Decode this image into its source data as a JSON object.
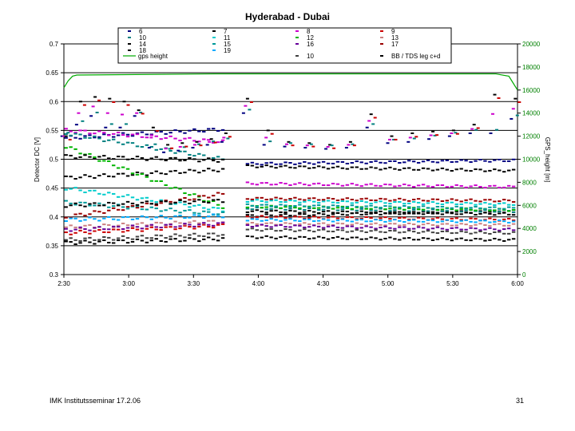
{
  "footer": {
    "left": "IMK Institutsseminar  17.2.06",
    "page": "31"
  },
  "colors": {
    "6": "#000080",
    "7": "#000000",
    "8": "#cc00cc",
    "9": "#cc0000",
    "10": "#008080",
    "11": "#00cccc",
    "12": "#00b400",
    "13": "#cc8080",
    "14": "#000000",
    "15": "#009999",
    "16": "#660099",
    "17": "#990000",
    "18": "#000000",
    "19": "#00aaff",
    "10b": "#404040",
    "bb": "#000000",
    "gps": "#00aa00"
  },
  "chart_data": {
    "type": "scatter",
    "title": "Hyderabad - Dubai",
    "xlabel": "",
    "ylabel": "Detector DC [V]",
    "y2label": "GPS_height [m]",
    "x_ticks": [
      "2:30",
      "3:00",
      "3:30",
      "4:00",
      "4:30",
      "5:00",
      "5:30",
      "6:00"
    ],
    "x_range": [
      "2:30",
      "6:00"
    ],
    "ylim": [
      0.3,
      0.7
    ],
    "y_ticks": [
      "0.3",
      "0.35",
      "0.4",
      "0.45",
      "0.5",
      "0.55",
      "0.6",
      "0.65",
      "0.7"
    ],
    "y2lim": [
      0,
      20000
    ],
    "y2_ticks": [
      "0",
      "2000",
      "4000",
      "6000",
      "8000",
      "10000",
      "12000",
      "14000",
      "16000",
      "18000",
      "20000"
    ],
    "grid": true,
    "legend_position": "top",
    "legend": [
      "6",
      "7",
      "8",
      "9",
      "10",
      "11",
      "12",
      "13",
      "14",
      "15",
      "16",
      "17",
      "18",
      "19",
      "10",
      "BB / TDS leg c+d",
      "gps height"
    ],
    "gap": [
      "3:45",
      "3:55"
    ],
    "series": [
      {
        "name": "6",
        "key": "6",
        "pre": [
          0.537,
          0.552
        ],
        "post": [
          0.492,
          0.498
        ]
      },
      {
        "name": "7",
        "key": "7",
        "pre": [
          0.468,
          0.482
        ],
        "post": [
          0.402,
          0.41
        ]
      },
      {
        "name": "8",
        "key": "8",
        "pre": [
          0.55,
          0.53
        ],
        "post": [
          0.458,
          0.452
        ]
      },
      {
        "name": "9",
        "key": "9",
        "pre": [
          0.372,
          0.385
        ],
        "post": [
          0.4,
          0.395
        ]
      },
      {
        "name": "10",
        "key": "10",
        "pre": [
          0.545,
          0.5
        ],
        "post": [
          0.415,
          0.41
        ]
      },
      {
        "name": "11",
        "key": "11",
        "pre": [
          0.45,
          0.412
        ],
        "post": [
          0.428,
          0.422
        ]
      },
      {
        "name": "12",
        "key": "12",
        "pre": [
          0.522,
          0.418
        ],
        "post": [
          0.418,
          0.412
        ]
      },
      {
        "name": "13",
        "key": "13",
        "pre": [
          0.382,
          0.392
        ],
        "post": [
          0.388,
          0.386
        ]
      },
      {
        "name": "14",
        "key": "14",
        "pre": [
          0.505,
          0.498
        ],
        "post": [
          0.488,
          0.48
        ]
      },
      {
        "name": "15",
        "key": "15",
        "pre": [
          0.425,
          0.405
        ],
        "post": [
          0.42,
          0.415
        ]
      },
      {
        "name": "16",
        "key": "16",
        "pre": [
          0.378,
          0.388
        ],
        "post": [
          0.385,
          0.378
        ]
      },
      {
        "name": "17",
        "key": "17",
        "pre": [
          0.4,
          0.44
        ],
        "post": [
          0.432,
          0.428
        ]
      },
      {
        "name": "18",
        "key": "18",
        "pre": [
          0.42,
          0.428
        ],
        "post": [
          0.41,
          0.405
        ]
      },
      {
        "name": "19",
        "key": "19",
        "pre": [
          0.395,
          0.402
        ],
        "post": [
          0.395,
          0.392
        ]
      },
      {
        "name": "10",
        "key": "10b",
        "pre": [
          0.36,
          0.37
        ],
        "post": [
          0.378,
          0.372
        ]
      },
      {
        "name": "BB / TDS leg c+d",
        "key": "bb",
        "pre": [
          0.355,
          0.362
        ],
        "post": [
          0.365,
          0.36
        ]
      }
    ],
    "gps_height": {
      "name": "gps height",
      "points": [
        [
          "2:30",
          16200
        ],
        [
          "2:32",
          16800
        ],
        [
          "2:34",
          17200
        ],
        [
          "2:36",
          17300
        ],
        [
          "3:40",
          17400
        ],
        [
          "5:50",
          17400
        ],
        [
          "5:56",
          17200
        ],
        [
          "5:58",
          16600
        ],
        [
          "6:00",
          16000
        ]
      ]
    },
    "upper_band": {
      "pre": [
        [
          0.54,
          0.54
        ],
        [
          0.56,
          0.6
        ],
        [
          0.575,
          0.608
        ],
        [
          0.555,
          0.605
        ],
        [
          0.555,
          0.6
        ],
        [
          0.575,
          0.585
        ],
        [
          0.52,
          0.555
        ],
        [
          0.512,
          0.525
        ],
        [
          0.515,
          0.528
        ],
        [
          0.52,
          0.53
        ],
        [
          0.525,
          0.535
        ],
        [
          0.53,
          0.545
        ]
      ],
      "post": [
        [
          0.58,
          0.605
        ],
        [
          0.525,
          0.55
        ],
        [
          0.522,
          0.53
        ],
        [
          0.52,
          0.528
        ],
        [
          0.518,
          0.525
        ],
        [
          0.52,
          0.53
        ],
        [
          0.555,
          0.578
        ],
        [
          0.528,
          0.54
        ],
        [
          0.53,
          0.545
        ],
        [
          0.535,
          0.548
        ],
        [
          0.54,
          0.55
        ],
        [
          0.545,
          0.56
        ],
        [
          0.545,
          0.612
        ],
        [
          0.57,
          0.605
        ]
      ]
    }
  }
}
